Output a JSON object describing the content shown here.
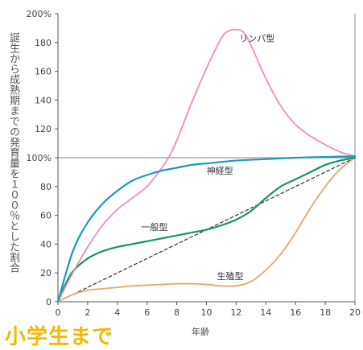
{
  "caption": {
    "text": "小学生まで",
    "color": "#f5b800"
  },
  "chart_data": {
    "type": "line",
    "ylabel": "誕生から成熟期までの発育量を１００％とした割合",
    "xlabel": "年齢",
    "xlim": [
      0,
      20
    ],
    "ylim": [
      0,
      200
    ],
    "x_ticks": [
      0,
      2,
      4,
      6,
      8,
      10,
      12,
      14,
      16,
      18,
      20
    ],
    "y_ticks": [
      {
        "value": 0,
        "label": "0"
      },
      {
        "value": 20,
        "label": "20"
      },
      {
        "value": 40,
        "label": "40"
      },
      {
        "value": 60,
        "label": "60"
      },
      {
        "value": 80,
        "label": "80"
      },
      {
        "value": 100,
        "label": "100%"
      },
      {
        "value": 120,
        "label": "120"
      },
      {
        "value": 140,
        "label": "140"
      },
      {
        "value": 160,
        "label": "160"
      },
      {
        "value": 180,
        "label": "180"
      },
      {
        "value": 200,
        "label": "200%"
      }
    ],
    "reference_line": {
      "value": 100,
      "color": "#9a9a9a"
    },
    "series": [
      {
        "name": "リンパ型",
        "color": "#f08cbf",
        "label_at": [
          13.4,
          183
        ],
        "x": [
          0,
          1,
          2,
          3,
          4,
          5,
          6,
          7,
          7.5,
          8,
          9,
          10,
          11,
          11.5,
          12,
          12.5,
          13,
          14,
          15,
          16,
          17,
          18,
          19,
          20
        ],
        "y": [
          0,
          20,
          38,
          53,
          64,
          72,
          80,
          93,
          101,
          112,
          138,
          162,
          183,
          188,
          189,
          187,
          178,
          155,
          136,
          123,
          115,
          109,
          104,
          101
        ]
      },
      {
        "name": "神経型",
        "color": "#1a9bb5",
        "label_at": [
          10.9,
          91
        ],
        "x": [
          0,
          1,
          2,
          3,
          4,
          5,
          6,
          7,
          8,
          9,
          10,
          12,
          14,
          16,
          18,
          20
        ],
        "y": [
          0,
          35,
          55,
          68,
          77,
          84,
          88,
          91,
          93,
          95,
          96,
          98,
          99,
          100,
          100.5,
          101
        ]
      },
      {
        "name": "一般型",
        "color": "#15956a",
        "label_at": [
          6.5,
          52
        ],
        "x": [
          0,
          0.5,
          1,
          2,
          3,
          4,
          5,
          6,
          7,
          8,
          9,
          10,
          11,
          12,
          13,
          14,
          15,
          16,
          17,
          18,
          19,
          20
        ],
        "y": [
          0,
          12,
          21,
          30,
          35,
          38,
          40,
          42,
          44,
          46,
          48,
          50,
          53,
          57,
          63,
          72,
          80,
          85,
          90,
          95,
          98,
          100
        ]
      },
      {
        "name": "生殖型",
        "color": "#e8a56c",
        "label_at": [
          11.6,
          18
        ],
        "x": [
          0,
          1,
          2,
          3,
          4,
          5,
          6,
          7,
          8,
          9,
          10,
          11,
          12,
          13,
          14,
          15,
          16,
          17,
          18,
          19,
          20
        ],
        "y": [
          0,
          5,
          8,
          9,
          10,
          11,
          11.5,
          12,
          12.5,
          12.5,
          12,
          11,
          11,
          14,
          22,
          33,
          48,
          65,
          80,
          92,
          100
        ]
      },
      {
        "name": "",
        "color": "#222222",
        "dashed": true,
        "x": [
          0,
          20
        ],
        "y": [
          0,
          100
        ]
      }
    ]
  }
}
